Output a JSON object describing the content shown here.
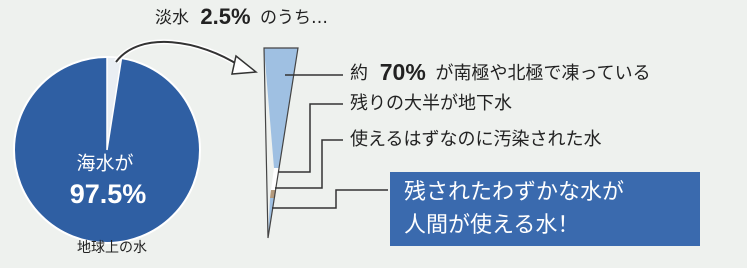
{
  "heading": {
    "prefix": "淡水",
    "value": "2.5%",
    "suffix": "のうち…"
  },
  "pie": {
    "label": [
      "海水が",
      "97.5%"
    ],
    "caption": "地球上の水"
  },
  "items": [
    {
      "parts": [
        "約",
        "70%",
        "が南極や北極で凍っている"
      ]
    },
    {
      "text": "残りの大半が地下水"
    },
    {
      "text": "使えるはずなのに汚染された水"
    }
  ],
  "highlight": [
    "残されたわずかな水が",
    "人間が使える水！"
  ]
}
